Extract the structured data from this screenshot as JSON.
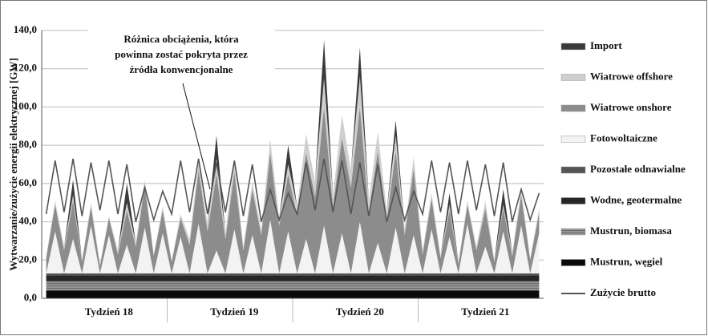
{
  "chart_data": {
    "type": "area",
    "ylabel": "Wytwarzanie/zużycie energii elektrycznej [GW]",
    "annotation": [
      "Różnica obciążenia, która",
      "powinna zostać pokryta przez",
      "źródła konwencjonalne"
    ],
    "categories": [
      null,
      null,
      null,
      null,
      null,
      null,
      null,
      "Tydzień 18",
      null,
      null,
      null,
      null,
      null,
      null,
      null,
      null,
      null,
      null,
      null,
      null,
      null,
      "Tydzień 19",
      null,
      null,
      null,
      null,
      null,
      null,
      null,
      null,
      null,
      null,
      null,
      null,
      null,
      "Tydzień 20",
      null,
      null,
      null,
      null,
      null,
      null,
      null,
      null,
      null,
      null,
      null,
      null,
      null,
      "Tydzień 21",
      null,
      null,
      null,
      null,
      null,
      null
    ],
    "ylim": [
      0,
      140
    ],
    "yticks": [
      {
        "value": 0,
        "label": "0,0"
      },
      {
        "value": 20,
        "label": "20,0"
      },
      {
        "value": 40,
        "label": "40,0"
      },
      {
        "value": 60,
        "label": "60,0"
      },
      {
        "value": 80,
        "label": "80,0"
      },
      {
        "value": 100,
        "label": "100,0"
      },
      {
        "value": 120,
        "label": "120,0"
      },
      {
        "value": 140,
        "label": "140,0"
      }
    ],
    "grid": true,
    "series": [
      {
        "name": "Import",
        "type": "area",
        "color": "#3a3a3a",
        "values": [
          0,
          0,
          0,
          8,
          0,
          0,
          0,
          0,
          0,
          10,
          0,
          0,
          0,
          0,
          0,
          0,
          0,
          0,
          0,
          12,
          0,
          0,
          0,
          0,
          0,
          0,
          0,
          10,
          0,
          0,
          0,
          20,
          0,
          0,
          0,
          15,
          0,
          0,
          0,
          8,
          0,
          0,
          0,
          0,
          0,
          6,
          0,
          0,
          0,
          0,
          0,
          8,
          0,
          0,
          0,
          0
        ]
      },
      {
        "name": "Wiatrowe offshore",
        "type": "area",
        "color": "#cfcfcf",
        "values": [
          1,
          2,
          2,
          3,
          1,
          2,
          1,
          1,
          2,
          4,
          2,
          3,
          1,
          2,
          1,
          2,
          3,
          5,
          4,
          8,
          3,
          6,
          2,
          4,
          3,
          7,
          4,
          5,
          5,
          10,
          8,
          15,
          6,
          12,
          9,
          16,
          6,
          10,
          5,
          8,
          3,
          6,
          2,
          3,
          1,
          3,
          1,
          2,
          2,
          4,
          1,
          2,
          2,
          3,
          1,
          2
        ]
      },
      {
        "name": "Wiatrowe onshore",
        "type": "area",
        "color": "#8c8c8c",
        "values": [
          8,
          14,
          12,
          20,
          6,
          10,
          4,
          9,
          10,
          18,
          14,
          22,
          9,
          12,
          6,
          10,
          15,
          28,
          22,
          40,
          18,
          30,
          12,
          24,
          20,
          35,
          25,
          30,
          30,
          45,
          40,
          62,
          35,
          50,
          45,
          60,
          32,
          48,
          28,
          40,
          20,
          35,
          10,
          16,
          8,
          14,
          5,
          10,
          12,
          20,
          6,
          12,
          9,
          16,
          7,
          11
        ]
      },
      {
        "name": "Fotowoltaiczne",
        "type": "area",
        "color": "#f3f3f3",
        "values": [
          0,
          22,
          0,
          18,
          0,
          25,
          0,
          20,
          0,
          15,
          0,
          24,
          0,
          21,
          0,
          19,
          0,
          26,
          0,
          12,
          0,
          23,
          0,
          20,
          0,
          28,
          0,
          22,
          0,
          18,
          0,
          25,
          0,
          21,
          0,
          27,
          0,
          16,
          0,
          24,
          0,
          20,
          0,
          23,
          0,
          19,
          0,
          26,
          0,
          14,
          0,
          22,
          0,
          25,
          0,
          21
        ]
      },
      {
        "name": "Pozostałe odnawialne",
        "type": "area",
        "color": "#555555",
        "values": [
          1,
          1,
          1,
          1,
          1,
          1,
          1,
          1,
          1,
          1,
          1,
          1,
          1,
          1,
          1,
          1,
          1,
          1,
          1,
          1,
          1,
          1,
          1,
          1,
          1,
          1,
          1,
          1,
          1,
          1,
          1,
          1,
          1,
          1,
          1,
          1,
          1,
          1,
          1,
          1,
          1,
          1,
          1,
          1,
          1,
          1,
          1,
          1,
          1,
          1,
          1,
          1,
          1,
          1,
          1,
          1
        ]
      },
      {
        "name": "Wodne, geotermalne",
        "type": "area",
        "color": "#262626",
        "values": [
          3,
          3,
          3,
          3,
          3,
          3,
          3,
          3,
          3,
          3,
          3,
          3,
          3,
          3,
          3,
          3,
          3,
          3,
          3,
          3,
          3,
          3,
          3,
          3,
          3,
          3,
          3,
          3,
          3,
          3,
          3,
          3,
          3,
          3,
          3,
          3,
          3,
          3,
          3,
          3,
          3,
          3,
          3,
          3,
          3,
          3,
          3,
          3,
          3,
          3,
          3,
          3,
          3,
          3,
          3,
          3
        ]
      },
      {
        "name": "Mustrun, biomasa",
        "type": "area",
        "color": "#7a7a7a",
        "values": [
          5,
          5,
          5,
          5,
          5,
          5,
          5,
          5,
          5,
          5,
          5,
          5,
          5,
          5,
          5,
          5,
          5,
          5,
          5,
          5,
          5,
          5,
          5,
          5,
          5,
          5,
          5,
          5,
          5,
          5,
          5,
          5,
          5,
          5,
          5,
          5,
          5,
          5,
          5,
          5,
          5,
          5,
          5,
          5,
          5,
          5,
          5,
          5,
          5,
          5,
          5,
          5,
          5,
          5,
          5,
          5
        ]
      },
      {
        "name": "Mustrun, węgiel",
        "type": "area",
        "color": "#0a0a0a",
        "values": [
          4,
          4,
          4,
          4,
          4,
          4,
          4,
          4,
          4,
          4,
          4,
          4,
          4,
          4,
          4,
          4,
          4,
          4,
          4,
          4,
          4,
          4,
          4,
          4,
          4,
          4,
          4,
          4,
          4,
          4,
          4,
          4,
          4,
          4,
          4,
          4,
          4,
          4,
          4,
          4,
          4,
          4,
          4,
          4,
          4,
          4,
          4,
          4,
          4,
          4,
          4,
          4,
          4,
          4,
          4,
          4
        ]
      },
      {
        "name": "Zużycie brutto",
        "type": "line",
        "color": "#555555",
        "values": [
          44,
          72,
          45,
          73,
          43,
          71,
          46,
          72,
          44,
          70,
          40,
          58,
          41,
          56,
          44,
          72,
          45,
          73,
          44,
          71,
          45,
          72,
          43,
          70,
          40,
          57,
          41,
          55,
          44,
          71,
          46,
          73,
          45,
          72,
          44,
          71,
          43,
          70,
          40,
          58,
          41,
          56,
          44,
          72,
          45,
          71,
          44,
          72,
          46,
          70,
          43,
          71,
          40,
          57,
          41,
          55
        ]
      }
    ]
  }
}
